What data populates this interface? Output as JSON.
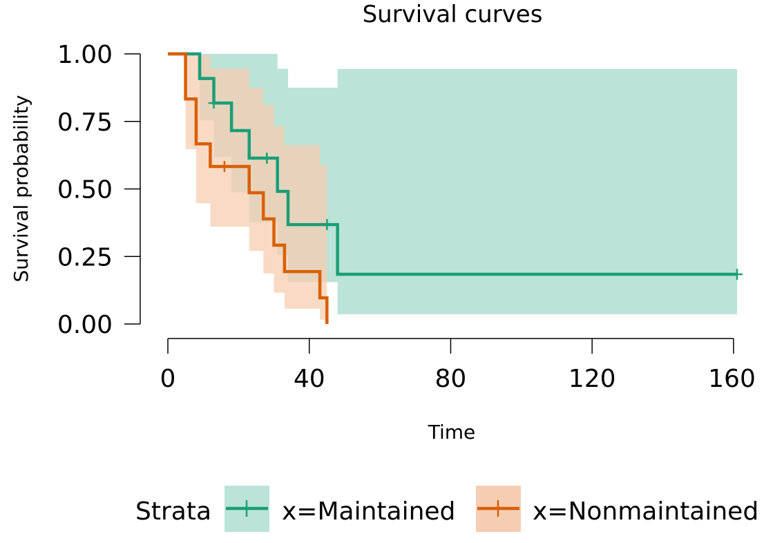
{
  "chart_data": {
    "type": "line",
    "title": "Survival curves",
    "xlabel": "Time",
    "ylabel": "Survival probability",
    "xlim": [
      0,
      161
    ],
    "ylim": [
      0,
      1
    ],
    "x_ticks": [
      0,
      40,
      80,
      120,
      160
    ],
    "x_tick_labels": [
      "0",
      "40",
      "80",
      "120",
      "160"
    ],
    "y_ticks": [
      0,
      0.25,
      0.5,
      0.75,
      1
    ],
    "y_tick_labels": [
      "0.00",
      "0.25",
      "0.50",
      "0.75",
      "1.00"
    ],
    "grid": false,
    "legend": {
      "position": "bottom",
      "title": "Strata"
    },
    "series": [
      {
        "name": "x=Maintained",
        "color": "#1B9E77",
        "band_color": "#BBE3D7",
        "steps": [
          {
            "time": 0,
            "surv": 1.0,
            "lower": 1.0,
            "upper": 1.0
          },
          {
            "time": 9,
            "surv": 0.909,
            "lower": 0.754,
            "upper": 1.0
          },
          {
            "time": 13,
            "surv": 0.818,
            "lower": 0.619,
            "upper": 1.0
          },
          {
            "time": 18,
            "surv": 0.716,
            "lower": 0.488,
            "upper": 1.0
          },
          {
            "time": 23,
            "surv": 0.614,
            "lower": 0.376,
            "upper": 1.0
          },
          {
            "time": 31,
            "surv": 0.491,
            "lower": 0.255,
            "upper": 0.945
          },
          {
            "time": 34,
            "surv": 0.368,
            "lower": 0.155,
            "upper": 0.875
          },
          {
            "time": 48,
            "surv": 0.184,
            "lower": 0.036,
            "upper": 0.944
          }
        ],
        "end_time": 161,
        "censor_times": [
          13,
          28,
          45,
          161
        ]
      },
      {
        "name": "x=Nonmaintained",
        "color": "#D95F02",
        "band_color": "#F5CDB2",
        "steps": [
          {
            "time": 0,
            "surv": 1.0,
            "lower": 1.0,
            "upper": 1.0
          },
          {
            "time": 5,
            "surv": 0.833,
            "lower": 0.647,
            "upper": 1.0
          },
          {
            "time": 8,
            "surv": 0.667,
            "lower": 0.447,
            "upper": 0.995
          },
          {
            "time": 12,
            "surv": 0.583,
            "lower": 0.36,
            "upper": 0.945
          },
          {
            "time": 23,
            "surv": 0.486,
            "lower": 0.27,
            "upper": 0.874
          },
          {
            "time": 27,
            "surv": 0.389,
            "lower": 0.187,
            "upper": 0.81
          },
          {
            "time": 30,
            "surv": 0.292,
            "lower": 0.116,
            "upper": 0.732
          },
          {
            "time": 33,
            "surv": 0.194,
            "lower": 0.057,
            "upper": 0.662
          },
          {
            "time": 43,
            "surv": 0.097,
            "lower": 0.016,
            "upper": 0.588
          },
          {
            "time": 45,
            "surv": 0.0,
            "lower": 0.0,
            "upper": 0.0
          }
        ],
        "end_time": 45,
        "censor_times": [
          16
        ]
      }
    ]
  }
}
